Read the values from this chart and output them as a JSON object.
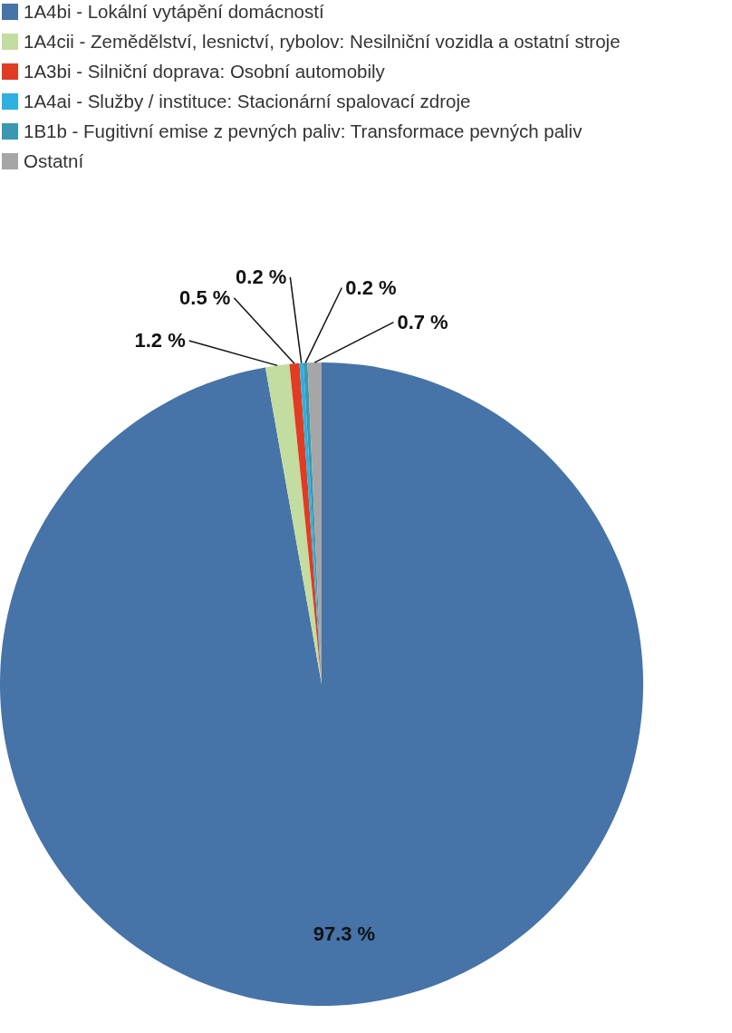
{
  "chart_data": {
    "type": "pie",
    "legend": "top left",
    "categories": [
      "1A4bi - Lokální vytápění domácností",
      "1A4cii - Zemědělství, lesnictví, rybolov: Nesilniční vozidla a ostatní stroje",
      "1A3bi - Silniční doprava: Osobní automobily",
      "1A4ai - Služby / instituce: Stacionární spalovací zdroje",
      "1B1b - Fugitivní emise z pevných paliv: Transformace pevných paliv",
      "Ostatní"
    ],
    "values": [
      97.3,
      1.2,
      0.5,
      0.2,
      0.2,
      0.7
    ],
    "colors": [
      "#4673a8",
      "#c3dca0",
      "#e03c24",
      "#2fb0e0",
      "#3a98b0",
      "#a6a6a6"
    ],
    "value_labels": [
      "97.3 %",
      "1.2 %",
      "0.5 %",
      "0.2 %",
      "0.2 %",
      "0.7 %"
    ]
  }
}
